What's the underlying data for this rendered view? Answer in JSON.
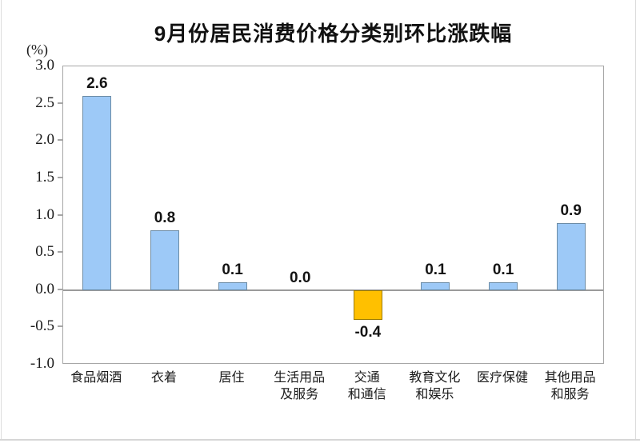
{
  "page": {
    "title": "9月份居民消费价格分类别环比涨跌幅",
    "axis_unit": "(%)"
  },
  "chart_data": {
    "type": "bar",
    "title": "9月份居民消费价格分类别环比涨跌幅",
    "xlabel": "",
    "ylabel": "(%)",
    "ylim": [
      -1.0,
      3.0
    ],
    "ytick_step": 0.5,
    "yticks": [
      "3.0",
      "2.5",
      "2.0",
      "1.5",
      "1.0",
      "0.5",
      "0.0",
      "-0.5",
      "-1.0"
    ],
    "categories": [
      "食品烟酒",
      "衣着",
      "居住",
      "生活用品\n及服务",
      "交通\n和通信",
      "教育文化\n和娱乐",
      "医疗保健",
      "其他用品\n和服务"
    ],
    "values": [
      2.6,
      0.8,
      0.1,
      0.0,
      -0.4,
      0.1,
      0.1,
      0.9
    ],
    "value_labels": [
      "2.6",
      "0.8",
      "0.1",
      "0.0",
      "-0.4",
      "0.1",
      "0.1",
      "0.9"
    ],
    "grid": "off",
    "legend": "none",
    "baseline": 0,
    "colors": {
      "positive_fill": "#9DC9F7",
      "positive_border": "#6C8CA6",
      "negative_fill": "#FFC000",
      "negative_border": "#9C7A00",
      "axis": "#A6A6A6",
      "text": "#1A1A1A"
    }
  }
}
